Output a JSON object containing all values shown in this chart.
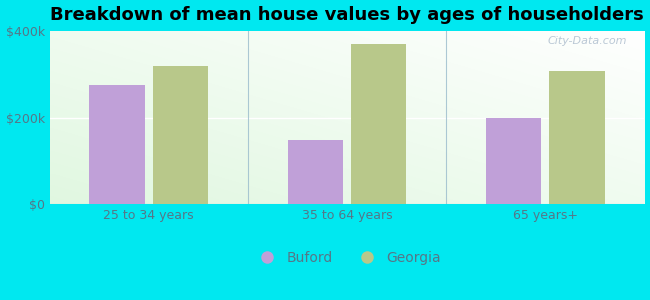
{
  "title": "Breakdown of mean house values by ages of householders",
  "categories": [
    "25 to 34 years",
    "35 to 64 years",
    "65 years+"
  ],
  "buford_values": [
    275000,
    148000,
    200000
  ],
  "georgia_values": [
    318000,
    370000,
    308000
  ],
  "buford_color": "#c0a0d8",
  "georgia_color": "#b8c88a",
  "background_outer": "#00e8f0",
  "ylim": [
    0,
    400000
  ],
  "yticks": [
    0,
    200000,
    400000
  ],
  "ytick_labels": [
    "$0",
    "$200k",
    "$400k"
  ],
  "legend_labels": [
    "Buford",
    "Georgia"
  ],
  "bar_width": 0.28,
  "title_fontsize": 13,
  "tick_fontsize": 9,
  "legend_fontsize": 10,
  "tick_color": "#557788",
  "watermark": "City-Data.com"
}
